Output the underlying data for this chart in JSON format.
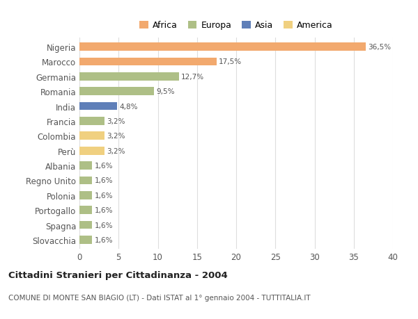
{
  "countries": [
    "Nigeria",
    "Marocco",
    "Germania",
    "Romania",
    "India",
    "Francia",
    "Colombia",
    "Perù",
    "Albania",
    "Regno Unito",
    "Polonia",
    "Portogallo",
    "Spagna",
    "Slovacchia"
  ],
  "values": [
    36.5,
    17.5,
    12.7,
    9.5,
    4.8,
    3.2,
    3.2,
    3.2,
    1.6,
    1.6,
    1.6,
    1.6,
    1.6,
    1.6
  ],
  "labels": [
    "36,5%",
    "17,5%",
    "12,7%",
    "9,5%",
    "4,8%",
    "3,2%",
    "3,2%",
    "3,2%",
    "1,6%",
    "1,6%",
    "1,6%",
    "1,6%",
    "1,6%",
    "1,6%"
  ],
  "colors": [
    "#F2A96E",
    "#F2A96E",
    "#AEBF86",
    "#AEBF86",
    "#5F7FB8",
    "#AEBF86",
    "#F0D080",
    "#F0D080",
    "#AEBF86",
    "#AEBF86",
    "#AEBF86",
    "#AEBF86",
    "#AEBF86",
    "#AEBF86"
  ],
  "legend_labels": [
    "Africa",
    "Europa",
    "Asia",
    "America"
  ],
  "legend_colors": [
    "#F2A96E",
    "#AEBF86",
    "#5F7FB8",
    "#F0D080"
  ],
  "title": "Cittadini Stranieri per Cittadinanza - 2004",
  "subtitle": "COMUNE DI MONTE SAN BIAGIO (LT) - Dati ISTAT al 1° gennaio 2004 - TUTTITALIA.IT",
  "xlim": [
    0,
    40
  ],
  "xticks": [
    0,
    5,
    10,
    15,
    20,
    25,
    30,
    35,
    40
  ],
  "background_color": "#ffffff",
  "grid_color": "#dddddd"
}
